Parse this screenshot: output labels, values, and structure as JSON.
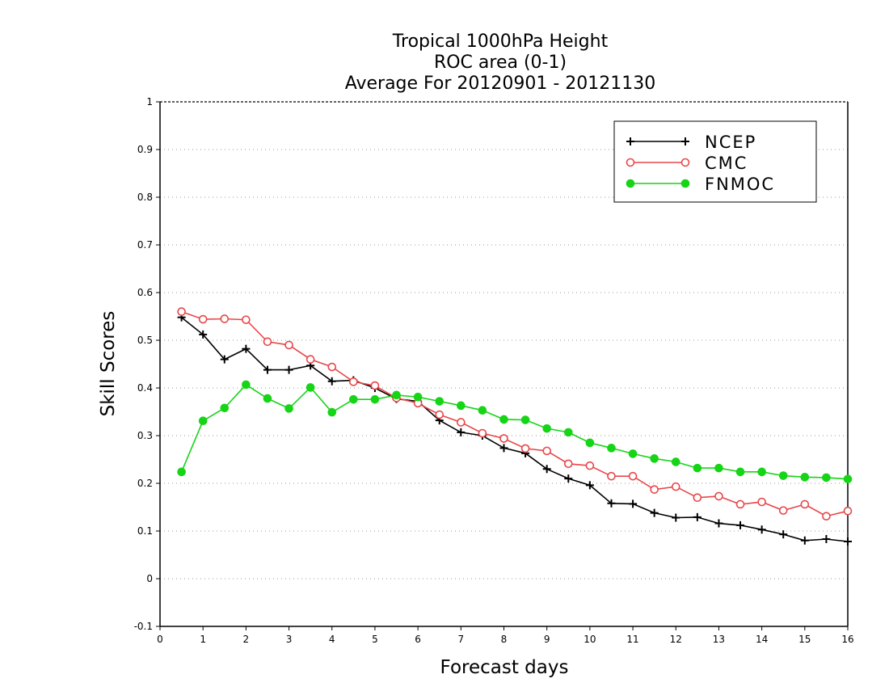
{
  "chart_data": {
    "type": "line",
    "title": [
      "Tropical 1000hPa Height",
      "ROC area (0-1)",
      "Average For 20120901 - 20121130"
    ],
    "xlabel": "Forecast days",
    "ylabel": "Skill Scores",
    "xlim": [
      0,
      16
    ],
    "ylim": [
      -0.1,
      1
    ],
    "xticks": [
      0,
      1,
      2,
      3,
      4,
      5,
      6,
      7,
      8,
      9,
      10,
      11,
      12,
      13,
      14,
      15,
      16
    ],
    "xtick_labels": [
      "0",
      "1",
      "2",
      "3",
      "4",
      "5",
      "6",
      "7",
      "8",
      "9",
      "10",
      "11",
      "12",
      "13",
      "14",
      "15",
      "16"
    ],
    "yticks": [
      -0.1,
      0,
      0.1,
      0.2,
      0.3,
      0.4,
      0.5,
      0.6,
      0.7,
      0.8,
      0.9,
      1
    ],
    "ytick_labels": [
      "-0.1",
      "0",
      "0.1",
      "0.2",
      "0.3",
      "0.4",
      "0.5",
      "0.6",
      "0.7",
      "0.8",
      "0.9",
      "1"
    ],
    "grid": true,
    "legend_position": "top-right",
    "x": [
      0.5,
      1,
      1.5,
      2,
      2.5,
      3,
      3.5,
      4,
      4.5,
      5,
      5.5,
      6,
      6.5,
      7,
      7.5,
      8,
      8.5,
      9,
      9.5,
      10,
      10.5,
      11,
      11.5,
      12,
      12.5,
      13,
      13.5,
      14,
      14.5,
      15,
      15.5,
      16
    ],
    "series": [
      {
        "name": "NCEP",
        "color": "#000000",
        "marker": "plus",
        "values": [
          0.548,
          0.512,
          0.46,
          0.482,
          0.438,
          0.438,
          0.447,
          0.414,
          0.416,
          0.4,
          0.377,
          0.372,
          0.332,
          0.307,
          0.3,
          0.274,
          0.263,
          0.23,
          0.21,
          0.196,
          0.158,
          0.157,
          0.138,
          0.128,
          0.129,
          0.116,
          0.112,
          0.103,
          0.093,
          0.08,
          0.083,
          0.078
        ]
      },
      {
        "name": "CMC",
        "color": "#e8474a",
        "marker": "open-circle",
        "values": [
          0.56,
          0.544,
          0.545,
          0.543,
          0.497,
          0.49,
          0.46,
          0.444,
          0.413,
          0.405,
          0.379,
          0.368,
          0.344,
          0.328,
          0.305,
          0.294,
          0.273,
          0.268,
          0.241,
          0.237,
          0.215,
          0.215,
          0.187,
          0.193,
          0.17,
          0.173,
          0.156,
          0.161,
          0.143,
          0.156,
          0.131,
          0.142
        ]
      },
      {
        "name": "FNMOC",
        "color": "#16d416",
        "marker": "filled-circle",
        "values": [
          0.224,
          0.331,
          0.358,
          0.407,
          0.378,
          0.357,
          0.401,
          0.349,
          0.376,
          0.376,
          0.385,
          0.381,
          0.372,
          0.363,
          0.353,
          0.334,
          0.333,
          0.315,
          0.307,
          0.285,
          0.274,
          0.262,
          0.252,
          0.245,
          0.232,
          0.232,
          0.224,
          0.224,
          0.216,
          0.213,
          0.212,
          0.209
        ]
      }
    ]
  }
}
